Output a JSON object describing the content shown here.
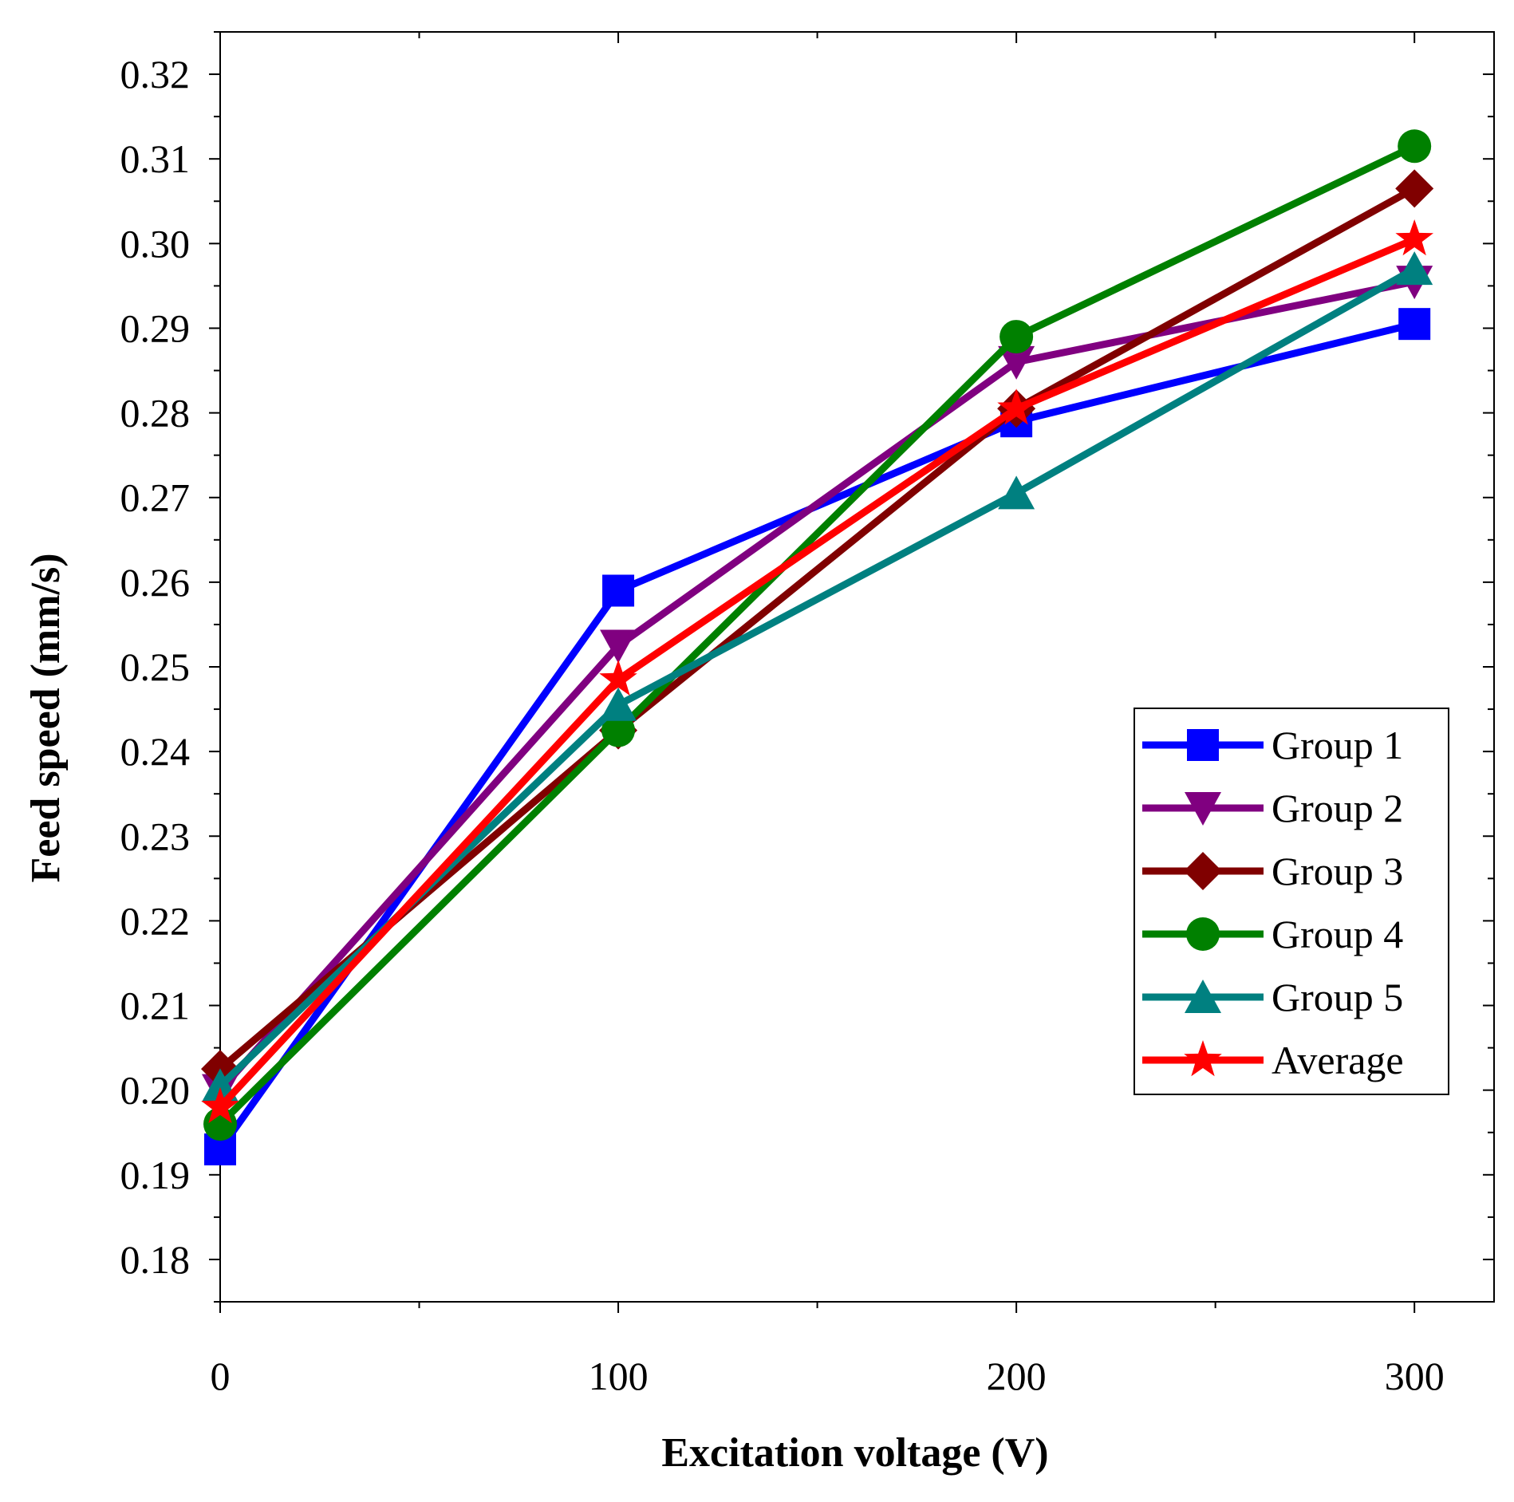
{
  "chart_data": {
    "type": "line",
    "title": "",
    "xlabel": "Excitation voltage (V)",
    "ylabel": "Feed speed (mm/s)",
    "x": [
      0,
      100,
      200,
      300
    ],
    "xlim": [
      0,
      320
    ],
    "ylim": [
      0.175,
      0.325
    ],
    "xticks": [
      {
        "value": 0,
        "label": "0"
      },
      {
        "value": 100,
        "label": "100"
      },
      {
        "value": 200,
        "label": "200"
      },
      {
        "value": 300,
        "label": "300"
      }
    ],
    "yticks": [
      {
        "value": 0.18,
        "label": "0.18"
      },
      {
        "value": 0.19,
        "label": "0.19"
      },
      {
        "value": 0.2,
        "label": "0.20"
      },
      {
        "value": 0.21,
        "label": "0.21"
      },
      {
        "value": 0.22,
        "label": "0.22"
      },
      {
        "value": 0.23,
        "label": "0.23"
      },
      {
        "value": 0.24,
        "label": "0.24"
      },
      {
        "value": 0.25,
        "label": "0.25"
      },
      {
        "value": 0.26,
        "label": "0.26"
      },
      {
        "value": 0.27,
        "label": "0.27"
      },
      {
        "value": 0.28,
        "label": "0.28"
      },
      {
        "value": 0.29,
        "label": "0.29"
      },
      {
        "value": 0.3,
        "label": "0.30"
      },
      {
        "value": 0.31,
        "label": "0.31"
      },
      {
        "value": 0.32,
        "label": "0.32"
      }
    ],
    "grid": false,
    "legend_position": "bottom-right",
    "series": [
      {
        "name": "Group 1",
        "marker": "square",
        "color": "#0000ff",
        "values": [
          0.193,
          0.259,
          0.279,
          0.2905
        ]
      },
      {
        "name": "Group 2",
        "marker": "triangle-down",
        "color": "#800080",
        "values": [
          0.2,
          0.2525,
          0.286,
          0.2955
        ]
      },
      {
        "name": "Group 3",
        "marker": "diamond",
        "color": "#800000",
        "values": [
          0.2025,
          0.2425,
          0.2805,
          0.3065
        ]
      },
      {
        "name": "Group 4",
        "marker": "circle",
        "color": "#008000",
        "values": [
          0.196,
          0.2425,
          0.289,
          0.3115
        ]
      },
      {
        "name": "Group 5",
        "marker": "triangle-up",
        "color": "#008080",
        "values": [
          0.2005,
          0.2455,
          0.2705,
          0.297
        ]
      },
      {
        "name": "Average",
        "marker": "star",
        "color": "#ff0000",
        "values": [
          0.198,
          0.2485,
          0.2805,
          0.3005
        ]
      }
    ]
  }
}
